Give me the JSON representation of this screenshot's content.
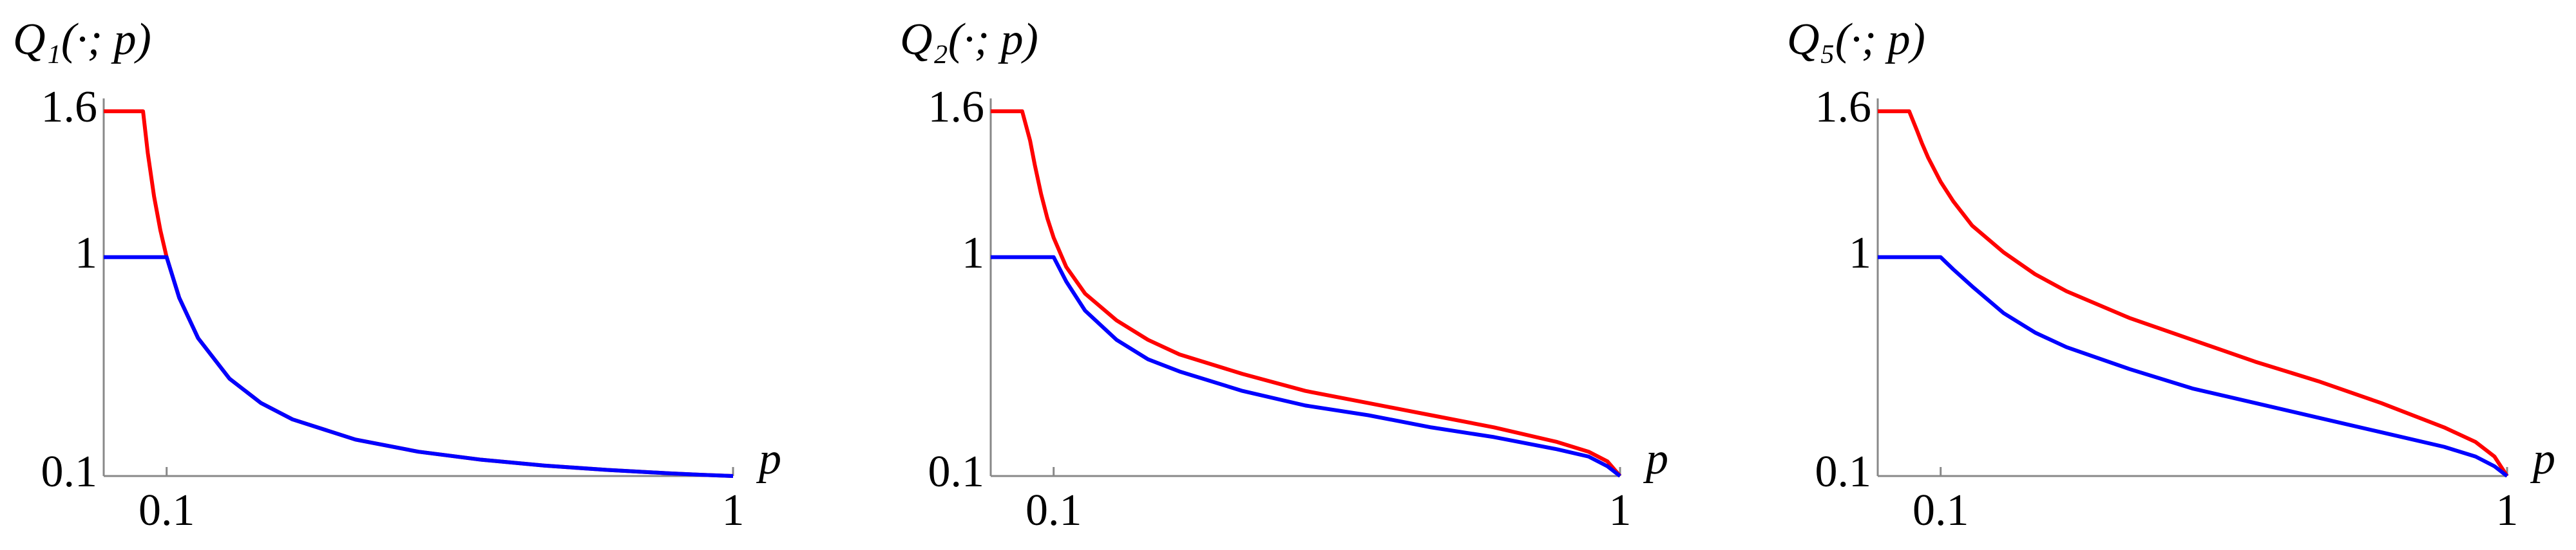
{
  "chart_data": [
    {
      "type": "line",
      "title": "Q₁(·; p)",
      "x_label": "p",
      "x": [
        0,
        0.05,
        0.0625,
        0.07,
        0.08,
        0.09,
        0.1,
        0.12,
        0.15,
        0.2,
        0.25,
        0.3,
        0.4,
        0.5,
        0.6,
        0.7,
        0.8,
        0.9,
        0.95,
        0.98,
        1
      ],
      "series": [
        {
          "color": "#ff0000",
          "values": [
            1.6,
            1.6,
            1.6,
            1.429,
            1.25,
            1.111,
            1,
            0.833,
            0.667,
            0.5,
            0.4,
            0.333,
            0.25,
            0.2,
            0.167,
            0.143,
            0.125,
            0.111,
            0.105,
            0.102,
            0.1
          ]
        },
        {
          "color": "#0000ff",
          "values": [
            1,
            1,
            1,
            1,
            1,
            1,
            1,
            0.833,
            0.667,
            0.5,
            0.4,
            0.333,
            0.25,
            0.2,
            0.167,
            0.143,
            0.125,
            0.111,
            0.105,
            0.102,
            0.1
          ]
        }
      ],
      "xlim": [
        0,
        1
      ],
      "ylim": [
        0.1,
        1.6
      ],
      "xticks": [
        0.1,
        1
      ],
      "yticks": [
        0.1,
        1,
        1.6
      ]
    },
    {
      "type": "line",
      "title": "Q₂(·; p)",
      "x_label": "p",
      "x": [
        0,
        0.05,
        0.0625,
        0.07,
        0.08,
        0.09,
        0.1,
        0.12,
        0.15,
        0.2,
        0.25,
        0.3,
        0.4,
        0.5,
        0.6,
        0.7,
        0.8,
        0.9,
        0.95,
        0.98,
        1
      ],
      "series": [
        {
          "color": "#ff0000",
          "values": [
            1.6,
            1.6,
            1.48,
            1.38,
            1.26,
            1.16,
            1.08,
            0.96,
            0.85,
            0.74,
            0.66,
            0.6,
            0.52,
            0.45,
            0.4,
            0.35,
            0.3,
            0.24,
            0.2,
            0.16,
            0.1
          ]
        },
        {
          "color": "#0000ff",
          "values": [
            1,
            1,
            1,
            1,
            1,
            1,
            1,
            0.9,
            0.78,
            0.66,
            0.58,
            0.53,
            0.45,
            0.39,
            0.35,
            0.3,
            0.26,
            0.21,
            0.18,
            0.14,
            0.1
          ]
        }
      ],
      "xlim": [
        0,
        1
      ],
      "ylim": [
        0.1,
        1.6
      ],
      "xticks": [
        0.1,
        1
      ],
      "yticks": [
        0.1,
        1,
        1.6
      ]
    },
    {
      "type": "line",
      "title": "Q₅(·; p)",
      "x_label": "p",
      "x": [
        0,
        0.05,
        0.0625,
        0.07,
        0.08,
        0.09,
        0.1,
        0.12,
        0.15,
        0.2,
        0.25,
        0.3,
        0.4,
        0.5,
        0.6,
        0.7,
        0.8,
        0.9,
        0.95,
        0.98,
        1
      ],
      "series": [
        {
          "color": "#ff0000",
          "values": [
            1.6,
            1.6,
            1.52,
            1.47,
            1.41,
            1.36,
            1.31,
            1.23,
            1.13,
            1.02,
            0.93,
            0.86,
            0.75,
            0.66,
            0.57,
            0.49,
            0.4,
            0.3,
            0.24,
            0.18,
            0.1
          ]
        },
        {
          "color": "#0000ff",
          "values": [
            1,
            1,
            1,
            1,
            1,
            1,
            1,
            0.95,
            0.88,
            0.77,
            0.69,
            0.63,
            0.54,
            0.46,
            0.4,
            0.34,
            0.28,
            0.22,
            0.18,
            0.14,
            0.1
          ]
        }
      ],
      "xlim": [
        0,
        1
      ],
      "ylim": [
        0.1,
        1.6
      ],
      "xticks": [
        0.1,
        1
      ],
      "yticks": [
        0.1,
        1,
        1.6
      ]
    }
  ]
}
